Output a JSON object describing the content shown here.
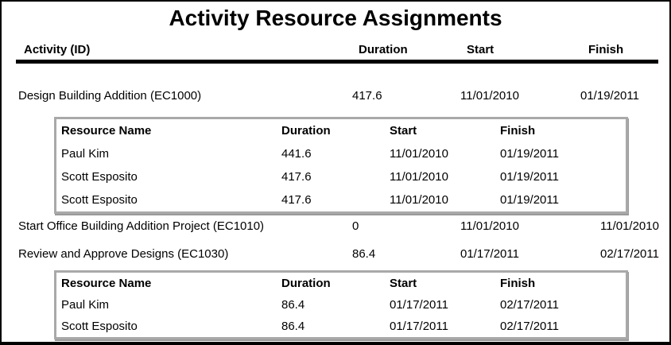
{
  "report": {
    "title": "Activity Resource Assignments",
    "columns": {
      "activity": "Activity (ID)",
      "duration": "Duration",
      "start": "Start",
      "finish": "Finish"
    },
    "resource_columns": {
      "name": "Resource Name",
      "duration": "Duration",
      "start": "Start",
      "finish": "Finish"
    },
    "activities": [
      {
        "name": "Design Building Addition (EC1000)",
        "duration": "417.6",
        "start": "11/01/2010",
        "finish": "01/19/2011",
        "resources": [
          {
            "name": "Paul Kim",
            "duration": "441.6",
            "start": "11/01/2010",
            "finish": "01/19/2011"
          },
          {
            "name": "Scott Esposito",
            "duration": "417.6",
            "start": "11/01/2010",
            "finish": "01/19/2011"
          },
          {
            "name": "Scott Esposito",
            "duration": "417.6",
            "start": "11/01/2010",
            "finish": "01/19/2011"
          }
        ]
      },
      {
        "name": "Start Office Building Addition Project (EC1010)",
        "duration": "0",
        "start": "11/01/2010",
        "finish": "11/01/2010",
        "resources": []
      },
      {
        "name": "Review and Approve Designs (EC1030)",
        "duration": "86.4",
        "start": "01/17/2011",
        "finish": "02/17/2011",
        "resources": [
          {
            "name": "Paul Kim",
            "duration": "86.4",
            "start": "01/17/2011",
            "finish": "02/17/2011"
          },
          {
            "name": "Scott Esposito",
            "duration": "86.4",
            "start": "01/17/2011",
            "finish": "02/17/2011"
          }
        ]
      }
    ]
  },
  "colors": {
    "page_border": "#000000",
    "resource_table_border": "#a9a9a9",
    "text": "#000000"
  }
}
